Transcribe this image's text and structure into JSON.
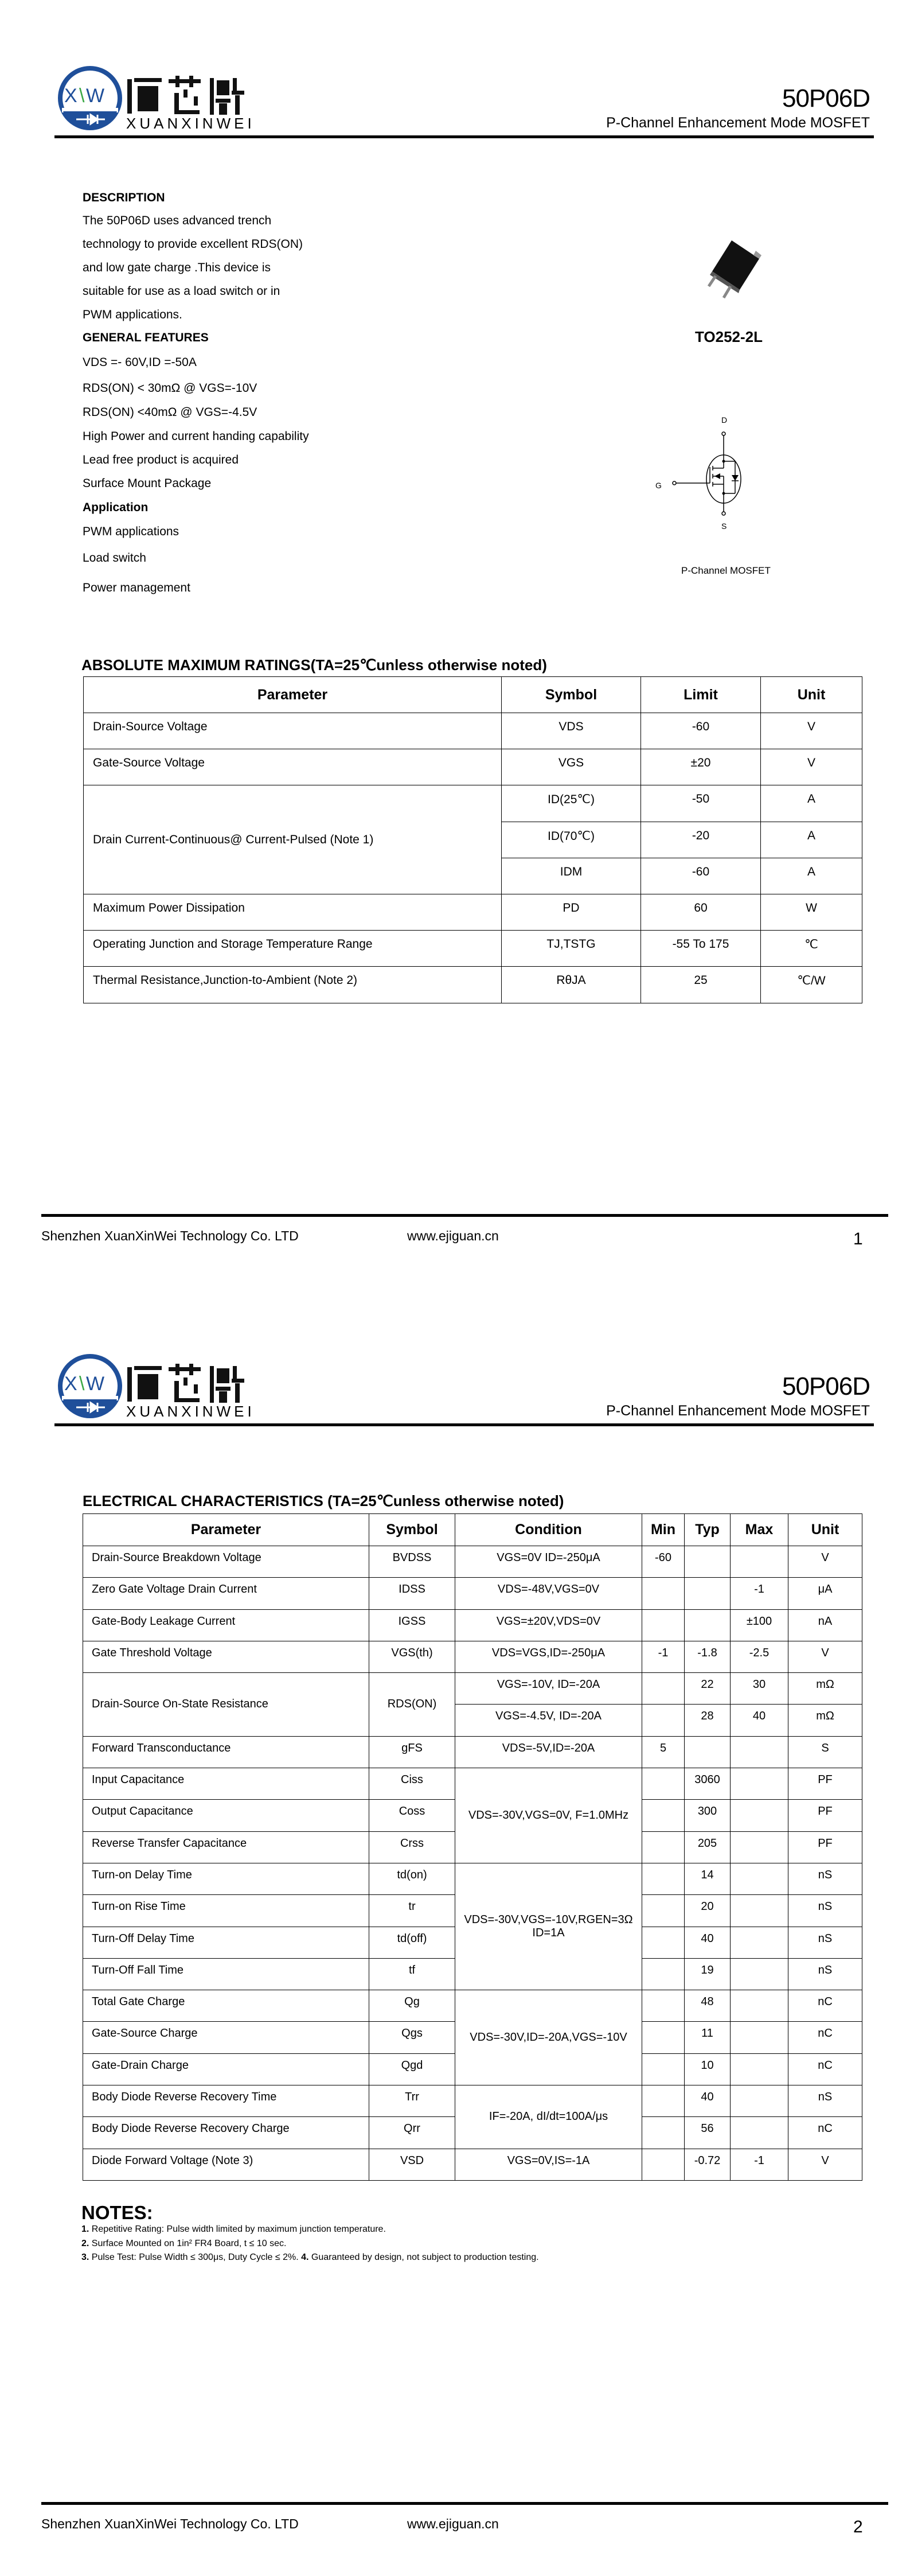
{
  "header": {
    "logo_mark": "XW",
    "logo_cn": "恒芯微",
    "logo_en": "XUANXINWEI",
    "part_number": "50P06D",
    "subtitle": "P-Channel Enhancement Mode MOSFET"
  },
  "footer": {
    "company": "Shenzhen XuanXinWei Technology Co. LTD",
    "url": "www.ejiguan.cn",
    "pages": [
      "1",
      "2"
    ]
  },
  "colors": {
    "logo_blue": "#1f4f9a",
    "logo_green": "#3aa845"
  },
  "page1": {
    "description_heading": "DESCRIPTION",
    "description_lines": [
      "The  50P06D uses advanced trench",
      "technology to provide excellent RDS(ON)",
      "and low gate charge .This device is",
      "suitable for use as a load switch or in",
      "PWM applications."
    ],
    "features_heading": "GENERAL FEATURES",
    "features": [
      "VDS =- 60V,ID =-50A",
      "RDS(ON) < 30mΩ @ VGS=-10V",
      "RDS(ON) <40mΩ @ VGS=-4.5V",
      "High Power and current handing capability",
      "Lead free product is acquired",
      "Surface Mount Package"
    ],
    "application_heading": "Application",
    "applications": [
      "PWM applications",
      "Load switch",
      "Power management"
    ],
    "package_label": "TO252-2L",
    "symbol_pins": {
      "drain": "D",
      "gate": "G",
      "source": "S"
    },
    "symbol_caption": "P-Channel MOSFET",
    "abs_max": {
      "title": "ABSOLUTE MAXIMUM RATINGS(TA=25℃unless otherwise noted)",
      "headers": [
        "Parameter",
        "Symbol",
        "Limit",
        "Unit"
      ],
      "rows": [
        {
          "param": "Drain-Source Voltage",
          "symbol": "VDS",
          "limit": "-60",
          "unit": "V"
        },
        {
          "param": "Gate-Source Voltage",
          "symbol": "VGS",
          "limit": "±20",
          "unit": "V"
        },
        {
          "param": "Drain Current-Continuous@ Current-Pulsed (Note 1)",
          "symbol": "ID(25℃)",
          "limit": "-50",
          "unit": "A"
        },
        {
          "symbol": "ID(70℃)",
          "limit": "-20",
          "unit": "A"
        },
        {
          "symbol": "IDM",
          "limit": "-60",
          "unit": "A"
        },
        {
          "param": "Maximum Power Dissipation",
          "symbol": "PD",
          "limit": "60",
          "unit": "W"
        },
        {
          "param": "Operating Junction and Storage Temperature Range",
          "symbol": "TJ,TSTG",
          "limit": "-55 To 175",
          "unit": "℃"
        },
        {
          "param": "Thermal Resistance,Junction-to-Ambient (Note 2)",
          "symbol": "RθJA",
          "limit": "25",
          "unit": "℃/W"
        }
      ]
    }
  },
  "page2": {
    "elec": {
      "title": "ELECTRICAL CHARACTERISTICS (TA=25℃unless otherwise noted)",
      "headers": [
        "Parameter",
        "Symbol",
        "Condition",
        "Min",
        "Typ",
        "Max",
        "Unit"
      ],
      "rows": [
        {
          "param": "Drain-Source Breakdown Voltage",
          "symbol": "BVDSS",
          "condition": "VGS=0V ID=-250μA",
          "min": "-60",
          "typ": "",
          "max": "",
          "unit": "V"
        },
        {
          "param": "Zero Gate Voltage Drain Current",
          "symbol": "IDSS",
          "condition": "VDS=-48V,VGS=0V",
          "min": "",
          "typ": "",
          "max": "-1",
          "unit": "μA"
        },
        {
          "param": "Gate-Body Leakage Current",
          "symbol": "IGSS",
          "condition": "VGS=±20V,VDS=0V",
          "min": "",
          "typ": "",
          "max": "±100",
          "unit": "nA"
        },
        {
          "param": "Gate Threshold Voltage",
          "symbol": "VGS(th)",
          "condition": "VDS=VGS,ID=-250μA",
          "min": "-1",
          "typ": "-1.8",
          "max": "-2.5",
          "unit": "V"
        },
        {
          "param": "Drain-Source On-State Resistance",
          "symbol": "RDS(ON)",
          "condition": "VGS=-10V, ID=-20A",
          "min": "",
          "typ": "22",
          "max": "30",
          "unit": "mΩ"
        },
        {
          "condition": "VGS=-4.5V, ID=-20A",
          "min": "",
          "typ": "28",
          "max": "40",
          "unit": "mΩ"
        },
        {
          "param": "Forward Transconductance",
          "symbol": "gFS",
          "condition": "VDS=-5V,ID=-20A",
          "min": "5",
          "typ": "",
          "max": "",
          "unit": "S"
        },
        {
          "param": "Input Capacitance",
          "symbol": "Ciss",
          "condition": "VDS=-30V,VGS=0V, F=1.0MHz",
          "min": "",
          "typ": "3060",
          "max": "",
          "unit": "PF"
        },
        {
          "param": "Output Capacitance",
          "symbol": "Coss",
          "min": "",
          "typ": "300",
          "max": "",
          "unit": "PF"
        },
        {
          "param": "Reverse Transfer Capacitance",
          "symbol": "Crss",
          "min": "",
          "typ": "205",
          "max": "",
          "unit": "PF"
        },
        {
          "param": "Turn-on Delay Time",
          "symbol": "td(on)",
          "condition": "VDS=-30V,VGS=-10V,RGEN=3Ω ID=1A",
          "min": "",
          "typ": "14",
          "max": "",
          "unit": "nS"
        },
        {
          "param": "Turn-on Rise Time",
          "symbol": "tr",
          "min": "",
          "typ": "20",
          "max": "",
          "unit": "nS"
        },
        {
          "param": "Turn-Off Delay Time",
          "symbol": "td(off)",
          "min": "",
          "typ": "40",
          "max": "",
          "unit": "nS"
        },
        {
          "param": "Turn-Off Fall Time",
          "symbol": "tf",
          "min": "",
          "typ": "19",
          "max": "",
          "unit": "nS"
        },
        {
          "param": "Total Gate Charge",
          "symbol": "Qg",
          "condition": "VDS=-30V,ID=-20A,VGS=-10V",
          "min": "",
          "typ": "48",
          "max": "",
          "unit": "nC"
        },
        {
          "param": "Gate-Source Charge",
          "symbol": "Qgs",
          "min": "",
          "typ": "11",
          "max": "",
          "unit": "nC"
        },
        {
          "param": "Gate-Drain Charge",
          "symbol": "Qgd",
          "min": "",
          "typ": "10",
          "max": "",
          "unit": "nC"
        },
        {
          "param": "Body Diode Reverse Recovery Time",
          "symbol": "Trr",
          "condition": "IF=-20A, dI/dt=100A/μs",
          "min": "",
          "typ": "40",
          "max": "",
          "unit": "nS"
        },
        {
          "param": "Body Diode Reverse Recovery Charge",
          "symbol": "Qrr",
          "min": "",
          "typ": "56",
          "max": "",
          "unit": "nC"
        },
        {
          "param": "Diode Forward Voltage (Note 3)",
          "symbol": "VSD",
          "condition": "VGS=0V,IS=-1A",
          "min": "",
          "typ": "-0.72",
          "max": "-1",
          "unit": "V"
        }
      ]
    },
    "notes_heading": "NOTES:",
    "notes": [
      {
        "num": "1.",
        "text": " Repetitive Rating: Pulse width limited by maximum junction temperature."
      },
      {
        "num": "2.",
        "text": " Surface Mounted on 1in² FR4 Board, t ≤ 10 sec."
      },
      {
        "num": "3.",
        "text": " Pulse Test: Pulse Width ≤ 300μs, Duty Cycle ≤ 2%. ",
        "num2": "4.",
        "text2": " Guaranteed by design, not subject to production testing."
      }
    ]
  }
}
